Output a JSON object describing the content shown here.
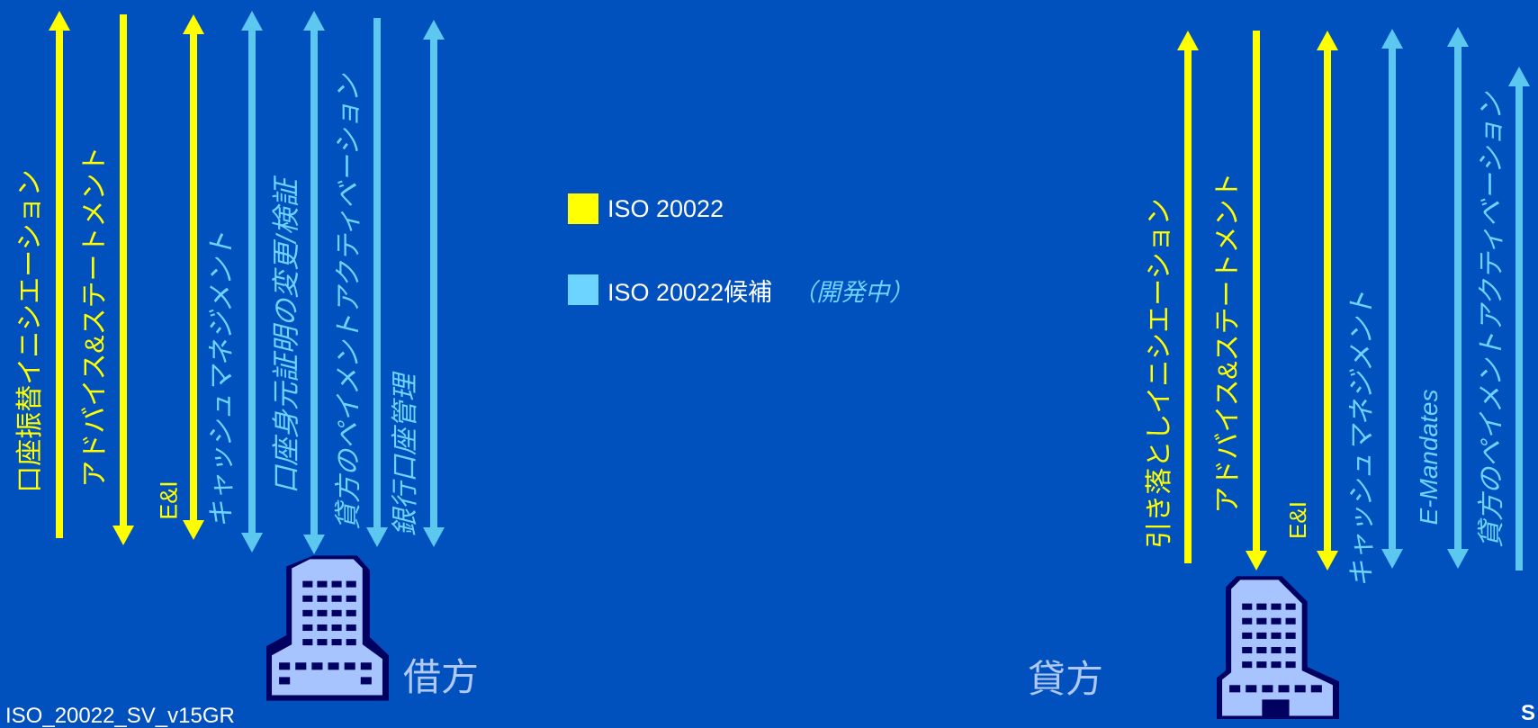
{
  "colors": {
    "background": "#0050BE",
    "iso": "#FFFF00",
    "candidate": "#5CC8F0",
    "building": "#A8C4FF",
    "building_dark": "#000060"
  },
  "legend": {
    "items": [
      {
        "label": "ISO 20022",
        "color": "#FFFF00",
        "note": ""
      },
      {
        "label": "ISO 20022候補",
        "color": "#6CD4FF",
        "note": "（開発中）"
      }
    ]
  },
  "debtor": {
    "label": "借方",
    "flows": [
      {
        "label": "口座振替イニシエーション",
        "direction": "up",
        "status": "iso",
        "italic": false
      },
      {
        "label": "アドバイス&ステートメント",
        "direction": "down",
        "status": "iso",
        "italic": false
      },
      {
        "label": "E&I",
        "direction": "both",
        "status": "iso",
        "italic": false
      },
      {
        "label": "キャッシュマネジメント",
        "direction": "both",
        "status": "candidate",
        "italic": true
      },
      {
        "label": "口座身元証明の変更/検証",
        "direction": "both",
        "status": "candidate",
        "italic": true
      },
      {
        "label": "貸方のペイメントアクティベーション",
        "direction": "down",
        "status": "candidate",
        "italic": true
      },
      {
        "label": "銀行口座管理",
        "direction": "both",
        "status": "candidate",
        "italic": true
      }
    ]
  },
  "creditor": {
    "label": "貸方",
    "flows": [
      {
        "label": "引き落としイニシエーション",
        "direction": "up",
        "status": "iso",
        "italic": false
      },
      {
        "label": "アドバイス&ステートメント",
        "direction": "down",
        "status": "iso",
        "italic": false
      },
      {
        "label": "E&I",
        "direction": "both",
        "status": "iso",
        "italic": false
      },
      {
        "label": "キャッシュマネジメント",
        "direction": "both",
        "status": "candidate",
        "italic": true
      },
      {
        "label": "E-Mandates",
        "direction": "both",
        "status": "candidate",
        "italic": true
      },
      {
        "label": "貸方のペイメントアクティベーション",
        "direction": "up",
        "status": "candidate",
        "italic": true
      }
    ]
  },
  "footer": {
    "left": "ISO_20022_SV_v15GR",
    "right": "S"
  }
}
